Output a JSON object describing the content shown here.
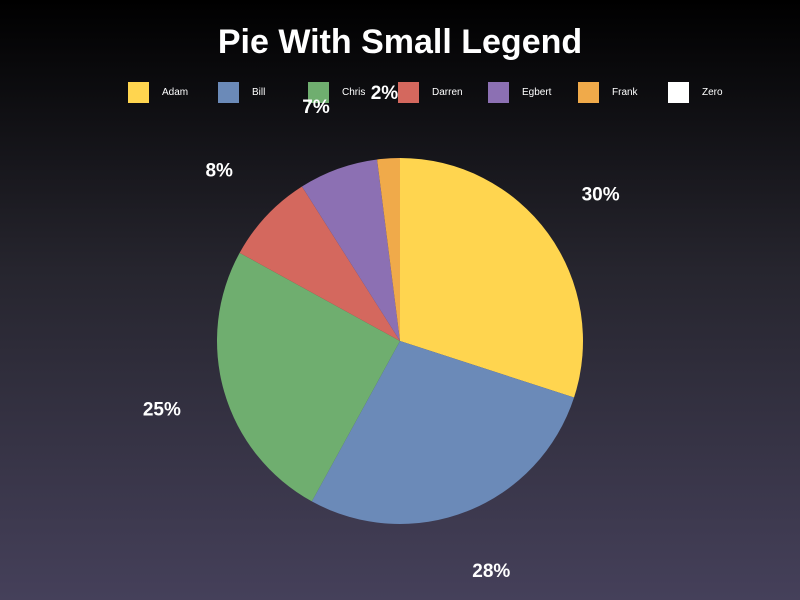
{
  "chart_data": {
    "type": "pie",
    "title": "Pie With Small Legend",
    "legend_position": "top",
    "slices": [
      {
        "name": "Adam",
        "value": 30,
        "label": "30%",
        "color": "#ffd54f"
      },
      {
        "name": "Bill",
        "value": 28,
        "label": "28%",
        "color": "#6b8ab8"
      },
      {
        "name": "Chris",
        "value": 25,
        "label": "25%",
        "color": "#6fae6f"
      },
      {
        "name": "Darren",
        "value": 8,
        "label": "8%",
        "color": "#d4685e"
      },
      {
        "name": "Egbert",
        "value": 7,
        "label": "7%",
        "color": "#8c70b3"
      },
      {
        "name": "Frank",
        "value": 2,
        "label": "2%",
        "color": "#f0aa4a"
      },
      {
        "name": "Zero",
        "value": 0,
        "label": "",
        "color": "#ffffff"
      }
    ]
  }
}
